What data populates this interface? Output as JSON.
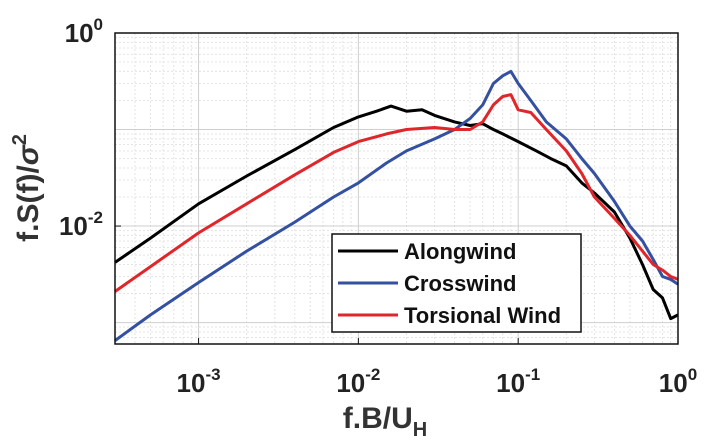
{
  "chart_data": {
    "type": "line",
    "xlabel_main": "f.B/U",
    "xlabel_sub": "H",
    "ylabel_main": "f.S(f)/",
    "ylabel_sigma": "σ",
    "ylabel_exp": "2",
    "xscale": "log",
    "yscale": "log",
    "xlim": [
      0.0003,
      1.0
    ],
    "ylim": [
      0.0006,
      1.0
    ],
    "grid": true,
    "legend_position": "bottom-right",
    "x_ticks": [
      {
        "value": 0.001,
        "base": "10",
        "exp": "-3"
      },
      {
        "value": 0.01,
        "base": "10",
        "exp": "-2"
      },
      {
        "value": 0.1,
        "base": "10",
        "exp": "-1"
      },
      {
        "value": 1.0,
        "base": "10",
        "exp": "0"
      }
    ],
    "y_ticks": [
      {
        "value": 0.01,
        "base": "10",
        "exp": "-2"
      },
      {
        "value": 1.0,
        "base": "10",
        "exp": "0"
      }
    ],
    "series": [
      {
        "name": "Alongwind",
        "color": "#000000",
        "x": [
          0.0003,
          0.0005,
          0.001,
          0.002,
          0.004,
          0.007,
          0.01,
          0.013,
          0.016,
          0.02,
          0.025,
          0.03,
          0.04,
          0.05,
          0.06,
          0.07,
          0.08,
          0.1,
          0.13,
          0.16,
          0.2,
          0.25,
          0.3,
          0.4,
          0.5,
          0.6,
          0.7,
          0.8,
          0.9,
          1.0
        ],
        "y": [
          0.0042,
          0.0075,
          0.017,
          0.033,
          0.062,
          0.105,
          0.135,
          0.155,
          0.175,
          0.155,
          0.16,
          0.14,
          0.12,
          0.11,
          0.115,
          0.1,
          0.09,
          0.075,
          0.06,
          0.05,
          0.042,
          0.028,
          0.022,
          0.014,
          0.0075,
          0.004,
          0.0022,
          0.0018,
          0.0011,
          0.0012
        ]
      },
      {
        "name": "Crosswind",
        "color": "#3450a0",
        "x": [
          0.0003,
          0.0005,
          0.001,
          0.002,
          0.004,
          0.007,
          0.01,
          0.015,
          0.02,
          0.03,
          0.04,
          0.05,
          0.06,
          0.07,
          0.08,
          0.09,
          0.1,
          0.12,
          0.15,
          0.2,
          0.25,
          0.3,
          0.4,
          0.5,
          0.6,
          0.7,
          0.8,
          0.9,
          1.0
        ],
        "y": [
          0.00065,
          0.0012,
          0.0026,
          0.0055,
          0.011,
          0.02,
          0.028,
          0.045,
          0.06,
          0.08,
          0.1,
          0.13,
          0.18,
          0.3,
          0.36,
          0.4,
          0.3,
          0.2,
          0.12,
          0.08,
          0.05,
          0.035,
          0.018,
          0.01,
          0.007,
          0.0045,
          0.003,
          0.0028,
          0.0025
        ]
      },
      {
        "name": "Torsional Wind",
        "color": "#e0262b",
        "x": [
          0.0003,
          0.0005,
          0.001,
          0.002,
          0.004,
          0.007,
          0.01,
          0.015,
          0.02,
          0.03,
          0.04,
          0.05,
          0.06,
          0.07,
          0.08,
          0.09,
          0.1,
          0.12,
          0.15,
          0.2,
          0.25,
          0.3,
          0.4,
          0.5,
          0.6,
          0.7,
          0.8,
          0.9,
          1.0
        ],
        "y": [
          0.0021,
          0.0038,
          0.0085,
          0.017,
          0.034,
          0.058,
          0.075,
          0.09,
          0.1,
          0.105,
          0.1,
          0.1,
          0.12,
          0.18,
          0.22,
          0.23,
          0.16,
          0.15,
          0.1,
          0.06,
          0.035,
          0.02,
          0.012,
          0.008,
          0.0055,
          0.004,
          0.0035,
          0.003,
          0.0028
        ]
      }
    ]
  }
}
